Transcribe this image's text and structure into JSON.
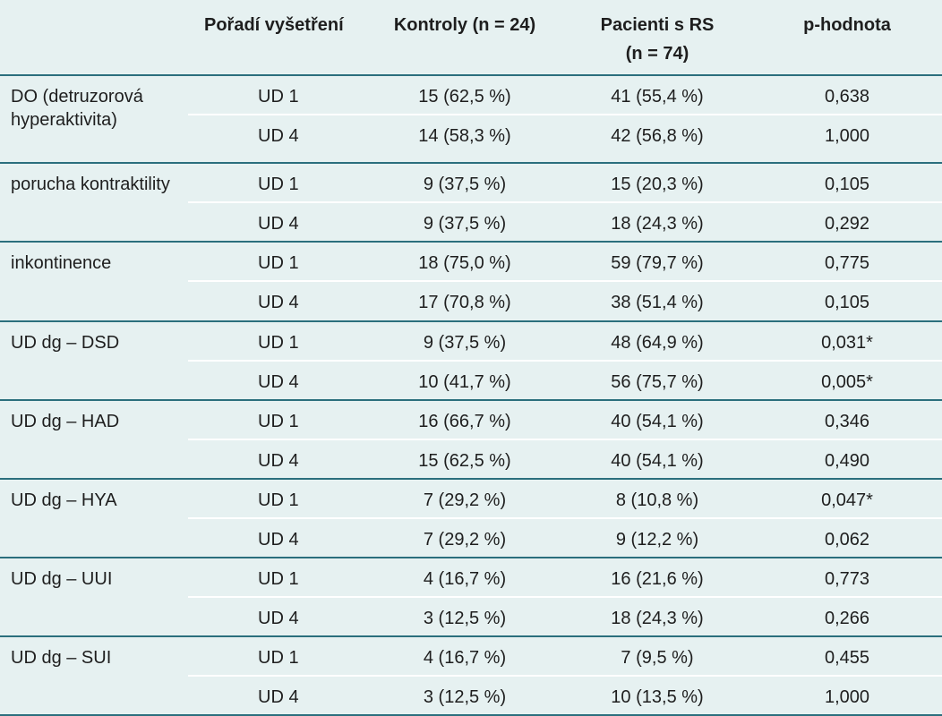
{
  "headers": {
    "col0": "",
    "col1": "Pořadí vyšetření",
    "col2": "Kontroly (n = 24)",
    "col3_line1": "Pacienti s RS",
    "col3_line2": "(n = 74)",
    "col4": "p-hodnota"
  },
  "groups": [
    {
      "label": "DO (detruzorová hyperaktivita)",
      "rows": [
        {
          "exam": "UD 1",
          "controls": "15 (62,5 %)",
          "patients": "41 (55,4 %)",
          "p": "0,638"
        },
        {
          "exam": "UD 4",
          "controls": "14 (58,3 %)",
          "patients": "42 (56,8 %)",
          "p": "1,000"
        }
      ]
    },
    {
      "label": "porucha kontraktility",
      "rows": [
        {
          "exam": "UD 1",
          "controls": "9 (37,5 %)",
          "patients": "15 (20,3 %)",
          "p": "0,105"
        },
        {
          "exam": "UD 4",
          "controls": "9 (37,5 %)",
          "patients": "18 (24,3 %)",
          "p": "0,292"
        }
      ]
    },
    {
      "label": "inkontinence",
      "rows": [
        {
          "exam": "UD 1",
          "controls": "18 (75,0 %)",
          "patients": "59 (79,7 %)",
          "p": "0,775"
        },
        {
          "exam": "UD 4",
          "controls": "17 (70,8 %)",
          "patients": "38 (51,4 %)",
          "p": "0,105"
        }
      ]
    },
    {
      "label": "UD dg – DSD",
      "rows": [
        {
          "exam": "UD 1",
          "controls": "9 (37,5 %)",
          "patients": "48 (64,9 %)",
          "p": "0,031*"
        },
        {
          "exam": "UD 4",
          "controls": "10 (41,7 %)",
          "patients": "56 (75,7 %)",
          "p": "0,005*"
        }
      ]
    },
    {
      "label": "UD dg – HAD",
      "rows": [
        {
          "exam": "UD 1",
          "controls": "16 (66,7 %)",
          "patients": "40 (54,1 %)",
          "p": "0,346"
        },
        {
          "exam": "UD 4",
          "controls": "15 (62,5 %)",
          "patients": "40 (54,1 %)",
          "p": "0,490"
        }
      ]
    },
    {
      "label": "UD dg – HYA",
      "rows": [
        {
          "exam": "UD 1",
          "controls": "7 (29,2 %)",
          "patients": "8 (10,8 %)",
          "p": "0,047*"
        },
        {
          "exam": "UD 4",
          "controls": "7 (29,2 %)",
          "patients": "9 (12,2 %)",
          "p": "0,062"
        }
      ]
    },
    {
      "label": "UD dg – UUI",
      "rows": [
        {
          "exam": "UD 1",
          "controls": "4 (16,7 %)",
          "patients": "16 (21,6 %)",
          "p": "0,773"
        },
        {
          "exam": "UD 4",
          "controls": "3 (12,5 %)",
          "patients": "18 (24,3 %)",
          "p": "0,266"
        }
      ]
    },
    {
      "label": "UD dg – SUI",
      "rows": [
        {
          "exam": "UD 1",
          "controls": "4 (16,7 %)",
          "patients": "7 (9,5 %)",
          "p": "0,455"
        },
        {
          "exam": "UD 4",
          "controls": "3 (12,5 %)",
          "patients": "10 (13,5 %)",
          "p": "1,000"
        }
      ]
    }
  ]
}
